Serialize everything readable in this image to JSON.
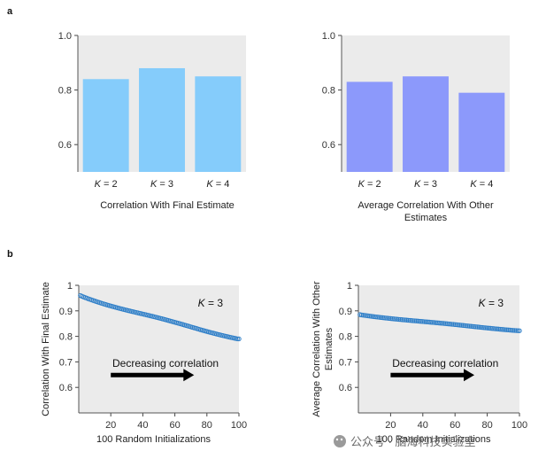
{
  "panel_labels": {
    "a": "a",
    "b": "b"
  },
  "watermark": "公众号 · 脑海科技实验室",
  "chart_data": [
    {
      "id": "a-left",
      "type": "bar",
      "categories_parts": [
        {
          "k": "K",
          "v": " = 2"
        },
        {
          "k": "K",
          "v": " = 3"
        },
        {
          "k": "K",
          "v": " = 4"
        }
      ],
      "values": [
        0.84,
        0.88,
        0.85
      ],
      "ylim": [
        0.5,
        1.0
      ],
      "yticks": [
        "0.6",
        "0.8",
        "1.0"
      ],
      "ytick_values": [
        0.6,
        0.8,
        1.0
      ],
      "title": "",
      "xlabel": "Correlation With Final Estimate",
      "ylabel": "",
      "color": "#85ccfb"
    },
    {
      "id": "a-right",
      "type": "bar",
      "categories_parts": [
        {
          "k": "K",
          "v": " = 2"
        },
        {
          "k": "K",
          "v": " = 3"
        },
        {
          "k": "K",
          "v": " = 4"
        }
      ],
      "values": [
        0.83,
        0.85,
        0.79
      ],
      "ylim": [
        0.5,
        1.0
      ],
      "yticks": [
        "0.6",
        "0.8",
        "1.0"
      ],
      "ytick_values": [
        0.6,
        0.8,
        1.0
      ],
      "title": "",
      "xlabel_lines": [
        "Average Correlation With Other",
        "Estimates"
      ],
      "ylabel": "",
      "color": "#8c99fb"
    },
    {
      "id": "b-left",
      "type": "scatter",
      "x_range": [
        1,
        100
      ],
      "y_start": 0.96,
      "y_end": 0.79,
      "xlim": [
        0,
        100
      ],
      "ylim": [
        0.5,
        1.0
      ],
      "xticks": [
        "20",
        "40",
        "60",
        "80",
        "100"
      ],
      "xtick_values": [
        20,
        40,
        60,
        80,
        100
      ],
      "yticks": [
        "0.6",
        "0.7",
        "0.8",
        "0.9",
        "1"
      ],
      "ytick_values": [
        0.6,
        0.7,
        0.8,
        0.9,
        1.0
      ],
      "xlabel": "100 Random Initializations",
      "ylabel": "Correlation With Final Estimate",
      "annotation_k": {
        "k": "K",
        "v": " = 3"
      },
      "arrow_text": "Decreasing correlation",
      "color": "#2f7fc8"
    },
    {
      "id": "b-right",
      "type": "scatter",
      "x_range": [
        1,
        100
      ],
      "y_start": 0.885,
      "y_end": 0.822,
      "xlim": [
        0,
        100
      ],
      "ylim": [
        0.5,
        1.0
      ],
      "xticks": [
        "20",
        "40",
        "60",
        "80",
        "100"
      ],
      "xtick_values": [
        20,
        40,
        60,
        80,
        100
      ],
      "yticks": [
        "0.6",
        "0.7",
        "0.8",
        "0.9",
        "1"
      ],
      "ytick_values": [
        0.6,
        0.7,
        0.8,
        0.9,
        1.0
      ],
      "xlabel": "100 Random Initializations",
      "ylabel_lines": [
        "Average Correlation With Other",
        "Estimates"
      ],
      "annotation_k": {
        "k": "K",
        "v": " = 3"
      },
      "arrow_text": "Decreasing correlation",
      "color": "#2f7fc8"
    }
  ]
}
